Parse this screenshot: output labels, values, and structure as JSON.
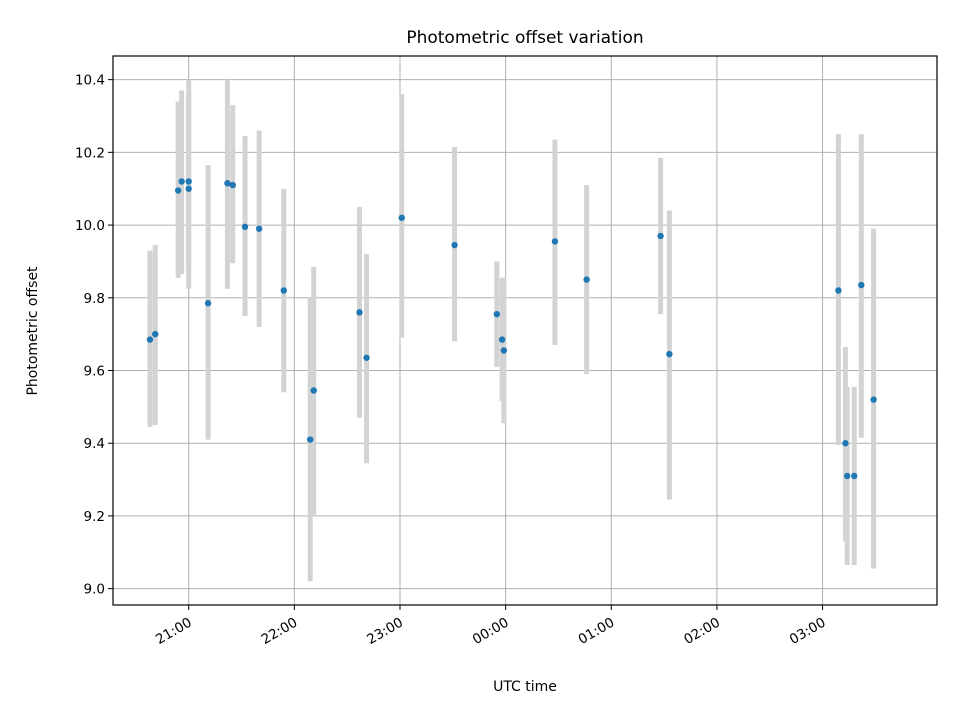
{
  "chart_data": {
    "type": "scatter",
    "title": "Photometric offset variation",
    "xlabel": "UTC time",
    "ylabel": "Photometric offset",
    "xlim": [
      "20:17",
      "04:05"
    ],
    "ylim": [
      8.955,
      10.465
    ],
    "x_ticks": [
      "21:00",
      "22:00",
      "23:00",
      "00:00",
      "01:00",
      "02:00",
      "03:00"
    ],
    "y_ticks": [
      "9.0",
      "9.2",
      "9.4",
      "9.6",
      "9.8",
      "10.0",
      "10.2",
      "10.4"
    ],
    "grid": true,
    "marker_color": "#1f77b4",
    "errorbar_color": "#d3d3d3",
    "points": [
      {
        "x": "20:38",
        "y": 9.685,
        "ylow": 9.445,
        "yhigh": 9.93
      },
      {
        "x": "20:41",
        "y": 9.7,
        "ylow": 9.45,
        "yhigh": 9.945
      },
      {
        "x": "20:54",
        "y": 10.095,
        "ylow": 9.855,
        "yhigh": 10.34
      },
      {
        "x": "20:56",
        "y": 10.12,
        "ylow": 9.865,
        "yhigh": 10.37
      },
      {
        "x": "21:00",
        "y": 10.12,
        "ylow": 9.875,
        "yhigh": 10.4
      },
      {
        "x": "21:00",
        "y": 10.1,
        "ylow": 9.825,
        "yhigh": 10.37
      },
      {
        "x": "21:11",
        "y": 9.785,
        "ylow": 9.41,
        "yhigh": 10.165
      },
      {
        "x": "21:22",
        "y": 10.115,
        "ylow": 9.825,
        "yhigh": 10.4
      },
      {
        "x": "21:25",
        "y": 10.11,
        "ylow": 9.895,
        "yhigh": 10.33
      },
      {
        "x": "21:32",
        "y": 9.995,
        "ylow": 9.75,
        "yhigh": 10.245
      },
      {
        "x": "21:40",
        "y": 9.99,
        "ylow": 9.72,
        "yhigh": 10.26
      },
      {
        "x": "21:54",
        "y": 9.82,
        "ylow": 9.54,
        "yhigh": 10.1
      },
      {
        "x": "22:09",
        "y": 9.41,
        "ylow": 9.02,
        "yhigh": 9.8
      },
      {
        "x": "22:11",
        "y": 9.545,
        "ylow": 9.2,
        "yhigh": 9.885
      },
      {
        "x": "22:37",
        "y": 9.76,
        "ylow": 9.47,
        "yhigh": 10.05
      },
      {
        "x": "22:41",
        "y": 9.635,
        "ylow": 9.345,
        "yhigh": 9.92
      },
      {
        "x": "23:01",
        "y": 10.02,
        "ylow": 9.69,
        "yhigh": 10.36
      },
      {
        "x": "23:31",
        "y": 9.945,
        "ylow": 9.68,
        "yhigh": 10.215
      },
      {
        "x": "23:55",
        "y": 9.755,
        "ylow": 9.61,
        "yhigh": 9.9
      },
      {
        "x": "23:58",
        "y": 9.685,
        "ylow": 9.515,
        "yhigh": 9.855
      },
      {
        "x": "23:59",
        "y": 9.655,
        "ylow": 9.455,
        "yhigh": 9.855
      },
      {
        "x": "00:28",
        "y": 9.955,
        "ylow": 9.67,
        "yhigh": 10.235
      },
      {
        "x": "00:46",
        "y": 9.85,
        "ylow": 9.59,
        "yhigh": 10.11
      },
      {
        "x": "01:28",
        "y": 9.97,
        "ylow": 9.755,
        "yhigh": 10.185
      },
      {
        "x": "01:33",
        "y": 9.645,
        "ylow": 9.245,
        "yhigh": 10.04
      },
      {
        "x": "03:09",
        "y": 9.82,
        "ylow": 9.395,
        "yhigh": 10.25
      },
      {
        "x": "03:13",
        "y": 9.4,
        "ylow": 9.13,
        "yhigh": 9.665
      },
      {
        "x": "03:14",
        "y": 9.31,
        "ylow": 9.065,
        "yhigh": 9.555
      },
      {
        "x": "03:18",
        "y": 9.31,
        "ylow": 9.065,
        "yhigh": 9.555
      },
      {
        "x": "03:22",
        "y": 9.835,
        "ylow": 9.415,
        "yhigh": 10.25
      },
      {
        "x": "03:29",
        "y": 9.52,
        "ylow": 9.055,
        "yhigh": 9.99
      }
    ]
  }
}
